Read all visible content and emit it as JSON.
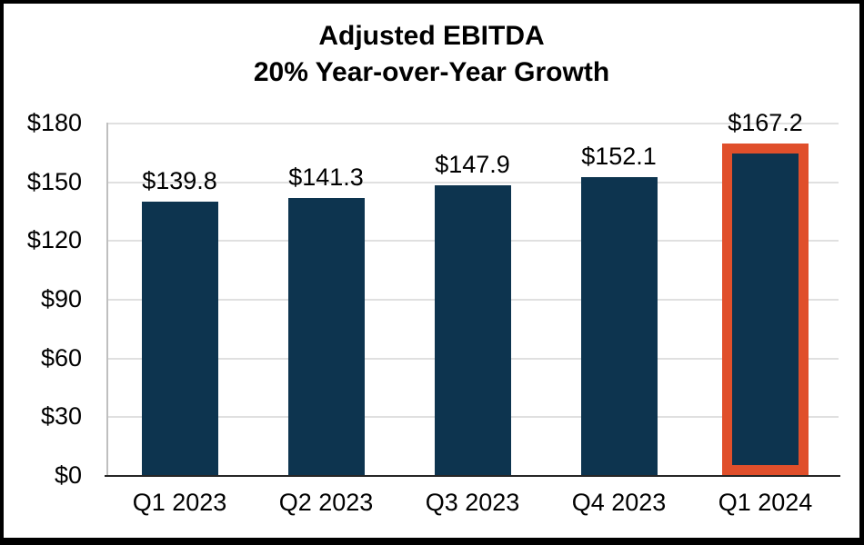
{
  "chart_data": {
    "type": "bar",
    "title": "Adjusted EBITDA",
    "subtitle": "20% Year-over-Year Growth",
    "categories": [
      "Q1 2023",
      "Q2 2023",
      "Q3 2023",
      "Q4 2023",
      "Q1 2024"
    ],
    "values": [
      139.8,
      141.3,
      147.9,
      152.1,
      167.2
    ],
    "data_labels": [
      "$139.8",
      "$141.3",
      "$147.9",
      "$152.1",
      "$167.2"
    ],
    "highlight_index": 4,
    "ylabel": "",
    "xlabel": "",
    "ylim": [
      0,
      180
    ],
    "ytick_step": 30,
    "yticks": [
      {
        "value": 0,
        "label": "$0"
      },
      {
        "value": 30,
        "label": "$30"
      },
      {
        "value": 60,
        "label": "$60"
      },
      {
        "value": 90,
        "label": "$90"
      },
      {
        "value": 120,
        "label": "$120"
      },
      {
        "value": 150,
        "label": "$150"
      },
      {
        "value": 180,
        "label": "$180"
      }
    ],
    "grid": true,
    "legend_position": "none",
    "colors": {
      "bar_fill": "#0d344f",
      "highlight_border": "#e04f2b",
      "gridline": "#e0e0e0",
      "left_axis_line": "#bfbfbf",
      "bottom_axis_line": "#262626",
      "text": "#000000",
      "background": "#ffffff",
      "frame_border": "#000000"
    }
  }
}
